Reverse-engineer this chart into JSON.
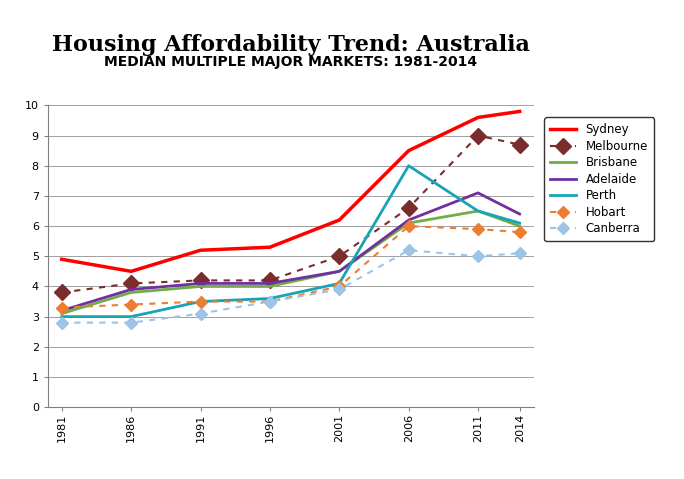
{
  "title": "Housing Affordability Trend: Australia",
  "subtitle": "MEDIAN MULTIPLE MAJOR MARKETS: 1981-2014",
  "title_fontsize": 16,
  "subtitle_fontsize": 10,
  "years": [
    1981,
    1986,
    1991,
    1996,
    2001,
    2006,
    2011,
    2014
  ],
  "series": {
    "Sydney": {
      "values": [
        4.9,
        4.5,
        5.2,
        5.3,
        6.2,
        8.5,
        9.6,
        9.8
      ],
      "color": "#FF0000",
      "linestyle": "solid",
      "linewidth": 2.5,
      "marker": null,
      "markersize": null,
      "dashed": false
    },
    "Melbourne": {
      "values": [
        3.8,
        4.1,
        4.2,
        4.2,
        5.0,
        6.6,
        9.0,
        8.7
      ],
      "color": "#7B2D2D",
      "linestyle": "none",
      "linewidth": 0,
      "marker": "D",
      "markersize": 8,
      "dashed": true
    },
    "Brisbane": {
      "values": [
        3.1,
        3.8,
        4.0,
        4.0,
        4.5,
        6.1,
        6.5,
        6.0
      ],
      "color": "#70AD47",
      "linestyle": "solid",
      "linewidth": 2.0,
      "marker": null,
      "markersize": null,
      "dashed": false
    },
    "Adelaide": {
      "values": [
        3.2,
        3.9,
        4.1,
        4.1,
        4.5,
        6.2,
        7.1,
        6.4
      ],
      "color": "#7030A0",
      "linestyle": "solid",
      "linewidth": 2.0,
      "marker": null,
      "markersize": null,
      "dashed": false
    },
    "Perth": {
      "values": [
        3.0,
        3.0,
        3.5,
        3.6,
        4.1,
        8.0,
        6.5,
        6.1
      ],
      "color": "#17A3B8",
      "linestyle": "solid",
      "linewidth": 2.0,
      "marker": null,
      "markersize": null,
      "dashed": false
    },
    "Hobart": {
      "values": [
        3.3,
        3.4,
        3.5,
        3.5,
        4.0,
        6.0,
        5.9,
        5.8
      ],
      "color": "#ED7D31",
      "linestyle": "none",
      "linewidth": 0,
      "marker": "D",
      "markersize": 6,
      "dashed": true
    },
    "Canberra": {
      "values": [
        2.8,
        2.8,
        3.1,
        3.5,
        3.9,
        5.2,
        5.0,
        5.1
      ],
      "color": "#9DC3E6",
      "linestyle": "none",
      "linewidth": 0,
      "marker": "D",
      "markersize": 6,
      "dashed": true
    }
  },
  "ylim": [
    0,
    10
  ],
  "yticks": [
    0,
    1,
    2,
    3,
    4,
    5,
    6,
    7,
    8,
    9,
    10
  ],
  "xlim_left": 1980,
  "xlim_right": 2015,
  "grid_color": "#A0A0A0",
  "grid_linewidth": 0.7,
  "background_color": "#FFFFFF",
  "legend_fontsize": 8.5,
  "axis_fontsize": 8
}
